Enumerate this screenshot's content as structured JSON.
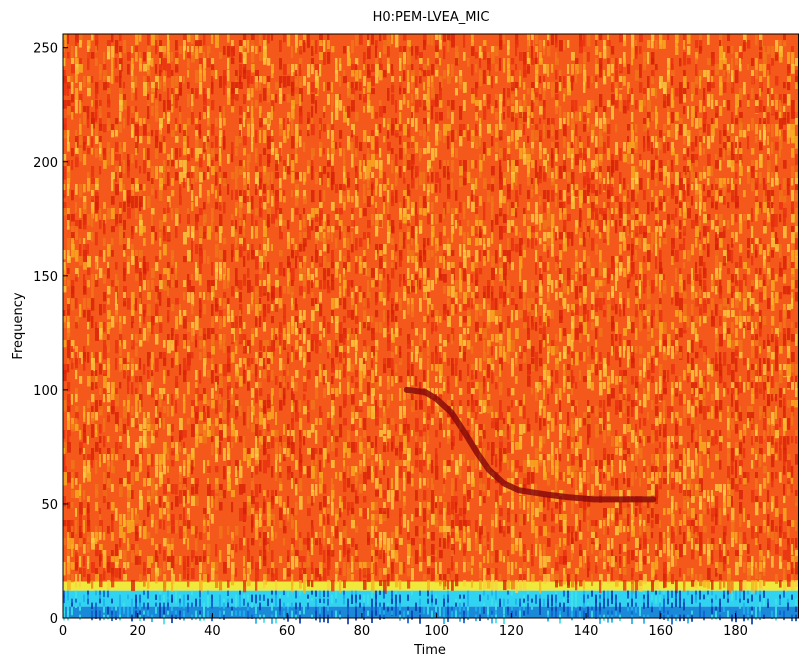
{
  "chart_data": {
    "type": "spectrogram",
    "title": "H0:PEM-LVEA_MIC",
    "x_label": "Time",
    "y_label": "Frequency",
    "xlim": [
      0,
      197
    ],
    "ylim": [
      0,
      256
    ],
    "xticks": [
      0,
      20,
      40,
      60,
      80,
      100,
      120,
      140,
      160,
      180
    ],
    "yticks": [
      0,
      50,
      100,
      150,
      200,
      250
    ],
    "bands": [
      {
        "from": 0,
        "to": 5,
        "color": "#1a8ad8"
      },
      {
        "from": 5,
        "to": 12,
        "color": "#30d4f0"
      },
      {
        "from": 12,
        "to": 16,
        "color": "#f0e83a"
      },
      {
        "from": 16,
        "to": 256,
        "color": "#f4581a"
      }
    ],
    "series": [
      {
        "color": "#8a0a0a",
        "x": [
          92,
          97,
          100,
          104,
          108,
          111,
          114,
          118,
          122,
          126,
          130,
          135,
          142,
          150,
          158
        ],
        "values": [
          100,
          99,
          96,
          90,
          80,
          72,
          65,
          59,
          56,
          55,
          54,
          53,
          52,
          52,
          52
        ]
      }
    ]
  }
}
